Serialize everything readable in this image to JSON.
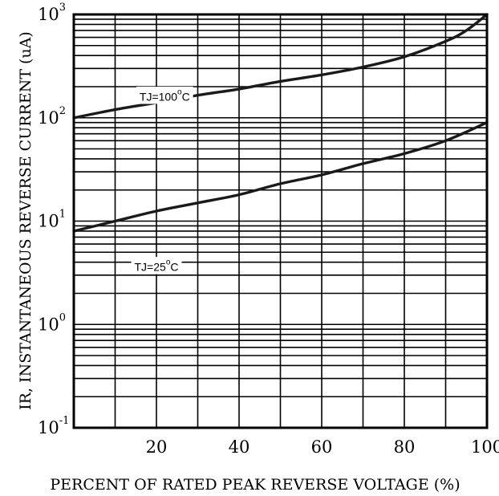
{
  "chart_data": {
    "type": "line",
    "xlabel": "PERCENT OF RATED PEAK REVERSE VOLTAGE (%)",
    "ylabel": "IR, INSTANTANEOUS REVERSE CURRENT (uA)",
    "xlim": [
      0,
      100
    ],
    "ylim": [
      0.1,
      1000
    ],
    "y_scale": "log",
    "grid": true,
    "x_ticks": [
      {
        "value": 20,
        "label": "20"
      },
      {
        "value": 40,
        "label": "40"
      },
      {
        "value": 60,
        "label": "60"
      },
      {
        "value": 80,
        "label": "80"
      },
      {
        "value": 100,
        "label": "100"
      }
    ],
    "y_ticks": [
      {
        "value": 0.1,
        "base": "10",
        "exp": "-1"
      },
      {
        "value": 1,
        "base": "10",
        "exp": "0"
      },
      {
        "value": 10,
        "base": "10",
        "exp": "1"
      },
      {
        "value": 100,
        "base": "10",
        "exp": "2"
      },
      {
        "value": 1000,
        "base": "10",
        "exp": "3"
      }
    ],
    "series": [
      {
        "name": "TJ=100°C",
        "annotation": {
          "main": "TJ=100",
          "deg": "o",
          "unit": "C",
          "x": 22,
          "y": 160
        },
        "x": [
          0,
          10,
          20,
          30,
          40,
          50,
          60,
          70,
          80,
          90,
          95,
          100
        ],
        "y": [
          100,
          120,
          140,
          165,
          190,
          225,
          260,
          310,
          390,
          550,
          700,
          1000
        ]
      },
      {
        "name": "TJ=25°C",
        "annotation": {
          "main": "TJ=25",
          "deg": "o",
          "unit": "C",
          "x": 20,
          "y": 3.6
        },
        "x": [
          0,
          10,
          20,
          30,
          40,
          50,
          60,
          70,
          80,
          90,
          100
        ],
        "y": [
          8,
          10,
          12.5,
          15,
          18,
          23,
          28,
          36,
          45,
          60,
          90
        ]
      }
    ]
  }
}
